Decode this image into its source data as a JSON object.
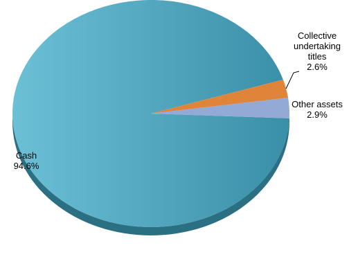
{
  "chart_data": {
    "type": "pie",
    "title": "",
    "legend": "none",
    "slices": [
      {
        "label": "Cash",
        "value": 94.6,
        "value_label": "94.6%",
        "color": "#4aa3bd"
      },
      {
        "label": "Collective undertaking titles",
        "label_lines": [
          "Collective",
          "undertaking",
          "titles"
        ],
        "value": 2.6,
        "value_label": "2.6%",
        "color": "#e0843a"
      },
      {
        "label": "Other assets",
        "value": 2.9,
        "value_label": "2.9%",
        "color": "#93a9d6"
      }
    ]
  }
}
